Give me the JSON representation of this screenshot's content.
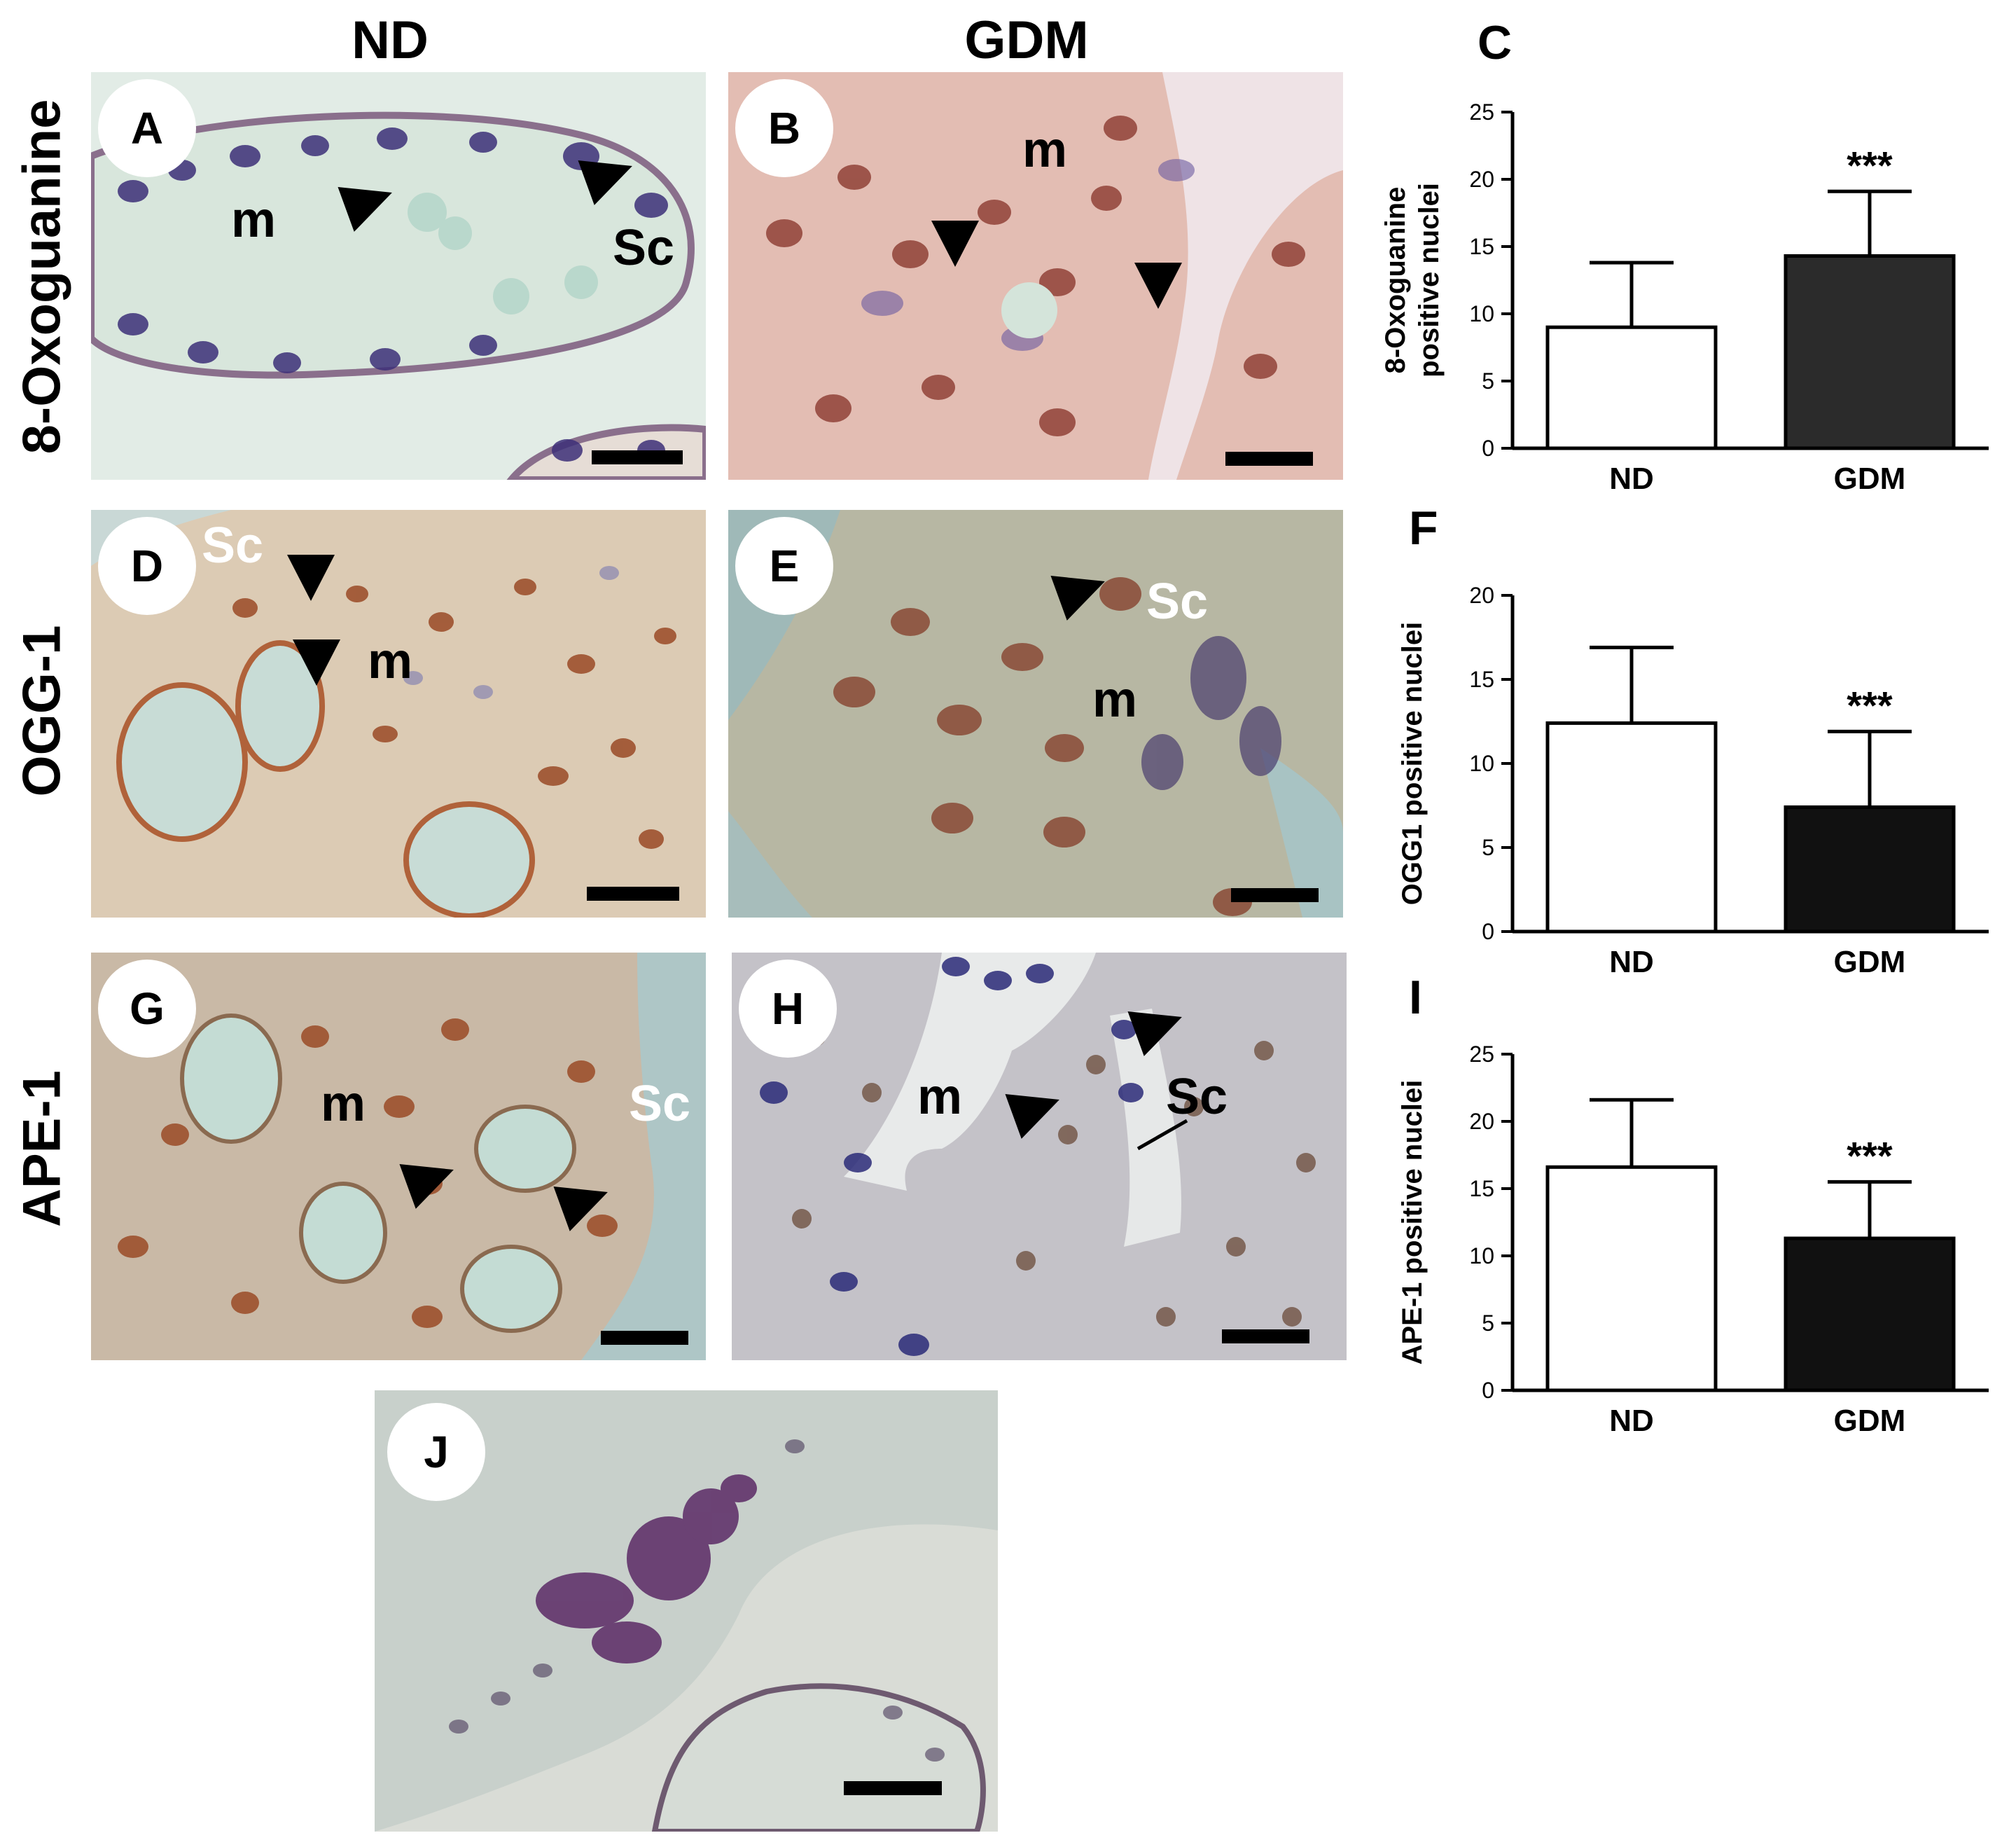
{
  "columns": {
    "nd": "ND",
    "gdm": "GDM"
  },
  "rows": {
    "r1": "8-Oxoguanine",
    "r2": "OGG-1",
    "r3": "APE-1"
  },
  "panels": {
    "A": {
      "letter": "A",
      "m": "m",
      "sc": "Sc"
    },
    "B": {
      "letter": "B",
      "m": "m"
    },
    "D": {
      "letter": "D",
      "m": "m",
      "sc": "Sc"
    },
    "E": {
      "letter": "E",
      "m": "m",
      "sc": "Sc"
    },
    "G": {
      "letter": "G",
      "m": "m",
      "sc": "Sc"
    },
    "H": {
      "letter": "H",
      "m": "m",
      "sc": "Sc"
    },
    "J": {
      "letter": "J"
    }
  },
  "chart_data": [
    {
      "panel": "C",
      "type": "bar",
      "ylabel": [
        "8-Oxoguanine",
        "positive nuclei"
      ],
      "categories": [
        "ND",
        "GDM"
      ],
      "values": [
        9.0,
        14.3
      ],
      "errors": [
        4.8,
        4.8
      ],
      "colors": [
        "#ffffff",
        "#2b2b2b"
      ],
      "ylim": [
        0,
        25
      ],
      "yticks": [
        0,
        5,
        10,
        15,
        20,
        25
      ],
      "significance": [
        "",
        "***"
      ]
    },
    {
      "panel": "F",
      "type": "bar",
      "ylabel": [
        "OGG1 positive nuclei"
      ],
      "categories": [
        "ND",
        "GDM"
      ],
      "values": [
        12.4,
        7.4
      ],
      "errors": [
        4.5,
        4.5
      ],
      "colors": [
        "#ffffff",
        "#111111"
      ],
      "ylim": [
        0,
        20
      ],
      "yticks": [
        0,
        5,
        10,
        15,
        20
      ],
      "significance": [
        "",
        "***"
      ]
    },
    {
      "panel": "I",
      "type": "bar",
      "ylabel": [
        "APE-1 positive nuclei"
      ],
      "categories": [
        "ND",
        "GDM"
      ],
      "values": [
        16.6,
        11.3
      ],
      "errors": [
        5.0,
        4.2
      ],
      "colors": [
        "#ffffff",
        "#111111"
      ],
      "ylim": [
        0,
        25
      ],
      "yticks": [
        0,
        5,
        10,
        15,
        20,
        25
      ],
      "significance": [
        "",
        "***"
      ]
    }
  ]
}
